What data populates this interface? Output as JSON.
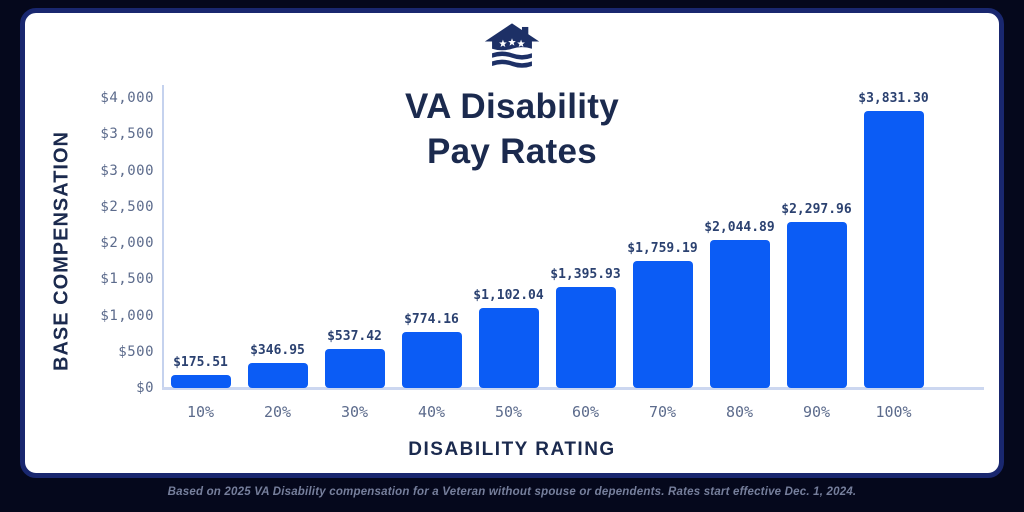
{
  "page": {
    "background_color": "#05081c",
    "card_color": "#ffffff",
    "frame_color": "#19276f"
  },
  "header": {
    "logo_name": "house-stars-waves-logo",
    "logo_color": "#1d3066",
    "title_line1": "VA Disability",
    "title_line2": "Pay Rates",
    "title_color": "#1b2a4e"
  },
  "chart_data": {
    "type": "bar",
    "title": "VA Disability Pay Rates",
    "xlabel": "DISABILITY RATING",
    "ylabel": "BASE COMPENSATION",
    "categories": [
      "10%",
      "20%",
      "30%",
      "40%",
      "50%",
      "60%",
      "70%",
      "80%",
      "90%",
      "100%"
    ],
    "values": [
      175.51,
      346.95,
      537.42,
      774.16,
      1102.04,
      1395.93,
      1759.19,
      2044.89,
      2297.96,
      3831.3
    ],
    "value_labels": [
      "$175.51",
      "$346.95",
      "$537.42",
      "$774.16",
      "$1,102.04",
      "$1,395.93",
      "$1,759.19",
      "$2,044.89",
      "$2,297.96",
      "$3,831.30"
    ],
    "y_ticks": [
      "$4,000",
      "$3,500",
      "$3,000",
      "$2,500",
      "$2,000",
      "$1,500",
      "$1,000",
      "$500",
      "$0"
    ],
    "ylim": [
      0,
      4000
    ],
    "grid": false,
    "legend": false,
    "bar_color": "#0b5cf5",
    "axis_line_color": "#c5d2ee",
    "tick_label_color": "#5c6b8c",
    "value_label_color": "#2b4170"
  },
  "footer": {
    "note": "Based on 2025 VA Disability compensation for a Veteran without spouse or dependents. Rates start effective Dec. 1, 2024."
  }
}
